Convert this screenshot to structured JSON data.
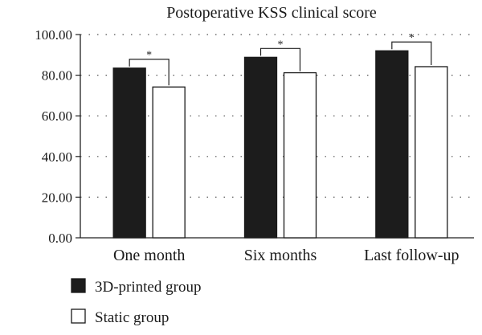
{
  "chart_data": {
    "type": "bar",
    "title": "Postoperative KSS clinical score",
    "xlabel": "",
    "ylabel": "",
    "ylim": [
      0,
      100
    ],
    "yticks": [
      "0.00",
      "20.00",
      "40.00",
      "60.00",
      "80.00",
      "100.00"
    ],
    "categories": [
      "One month",
      "Six months",
      "Last follow-up"
    ],
    "series": [
      {
        "name": "3D-printed group",
        "values": [
          83.5,
          88.8,
          92.0
        ],
        "color": "#1c1c1c"
      },
      {
        "name": "Static group",
        "values": [
          74.2,
          81.2,
          84.2
        ],
        "color": "#ffffff"
      }
    ],
    "significance": [
      "*",
      "*",
      "*"
    ],
    "grid": "dotted horizontal",
    "legend_position": "bottom-left"
  }
}
